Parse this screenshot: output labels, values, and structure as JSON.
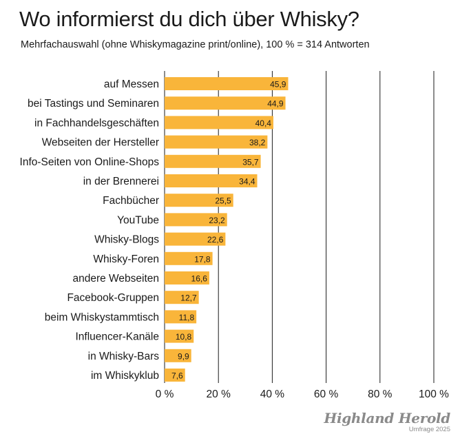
{
  "chart_data": {
    "type": "bar",
    "orientation": "horizontal",
    "title": "Wo informierst du dich über Whisky?",
    "subtitle": "Mehrfachauswahl (ohne Whiskymagazine print/online), 100 % = 314 Antworten",
    "categories": [
      "auf Messen",
      "bei Tastings und Seminaren",
      "in Fachhandelsgeschäften",
      "Webseiten der Hersteller",
      "Info-Seiten von Online-Shops",
      "in der Brennerei",
      "Fachbücher",
      "YouTube",
      "Whisky-Blogs",
      "Whisky-Foren",
      "andere Webseiten",
      "Facebook-Gruppen",
      "beim Whiskystammtisch",
      "Influencer-Kanäle",
      "in Whisky-Bars",
      "im Whiskyklub"
    ],
    "values": [
      45.9,
      44.9,
      40.4,
      38.2,
      35.7,
      34.4,
      25.5,
      23.2,
      22.6,
      17.8,
      16.6,
      12.7,
      11.8,
      10.8,
      9.9,
      7.6
    ],
    "value_labels": [
      "45,9",
      "44,9",
      "40,4",
      "38,2",
      "35,7",
      "34,4",
      "25,5",
      "23,2",
      "22,6",
      "17,8",
      "16,6",
      "12,7",
      "11,8",
      "10,8",
      "9,9",
      "7,6"
    ],
    "xlim": [
      0,
      100
    ],
    "x_ticks": [
      0,
      20,
      40,
      60,
      80,
      100
    ],
    "x_tick_labels": [
      "0 %",
      "20 %",
      "40 %",
      "60 %",
      "80 %",
      "100 %"
    ],
    "grid": "vertical",
    "bar_color": "#f9b53a",
    "text_color": "#1a1a1a"
  },
  "brand": {
    "name": "Highland Herold",
    "note": "Umfrage 2025"
  }
}
